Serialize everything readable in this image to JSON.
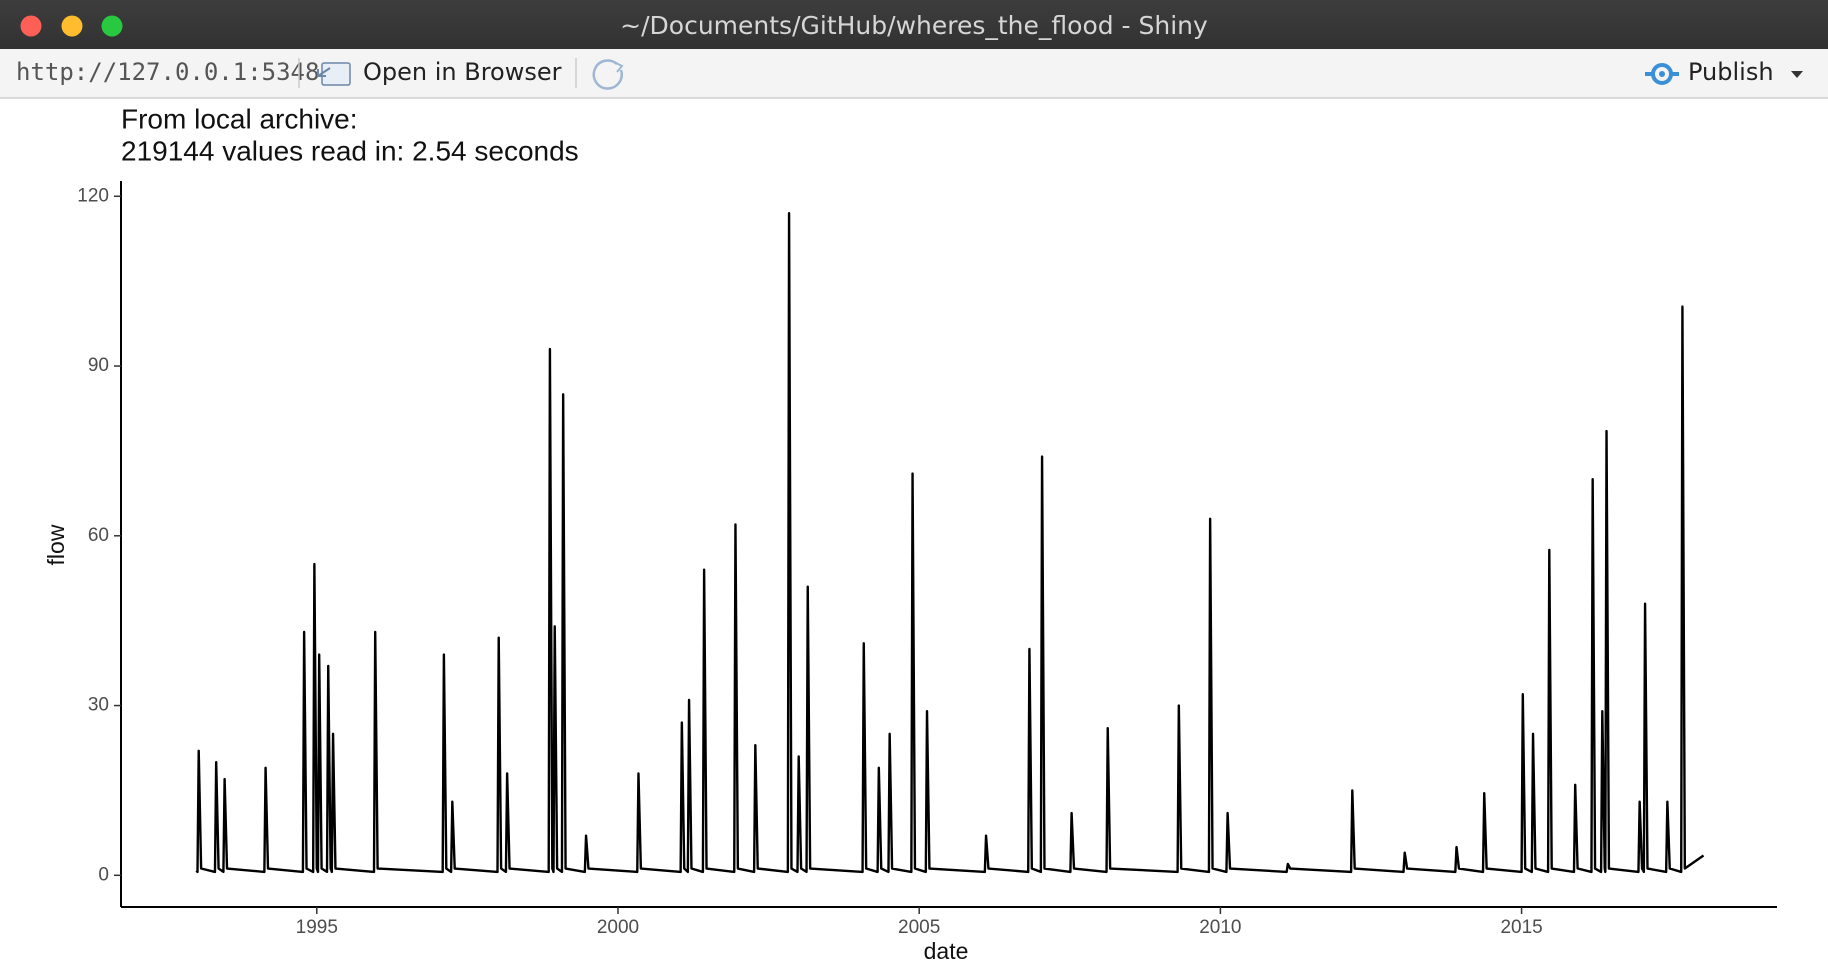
{
  "window": {
    "title": "~/Documents/GitHub/wheres_the_flood - Shiny"
  },
  "toolbar": {
    "url": "http://127.0.0.1:5348",
    "open_button": "Open in Browser",
    "publish_button": "Publish"
  },
  "chart_data": {
    "type": "line",
    "title": "From local archive:",
    "subtitle": "219144 values read in: 2.54 seconds",
    "x_label": "date",
    "y_label": "flow",
    "color": "#000000",
    "xlim": [
      1991.75,
      2019.24
    ],
    "xticks": [
      1995,
      2000,
      2005,
      2010,
      2015
    ],
    "ylim": [
      -5.6,
      122.7
    ],
    "yticks": [
      0,
      30,
      60,
      90,
      120
    ],
    "grid": false,
    "x": [
      1993.0,
      1993.02,
      1993.04,
      1993.08,
      1993.31,
      1993.33,
      1993.37,
      1993.45,
      1993.47,
      1993.51,
      1994.13,
      1994.15,
      1994.19,
      1994.77,
      1994.79,
      1994.83,
      1994.94,
      1994.96,
      1995.0,
      1995.02,
      1995.04,
      1995.08,
      1995.17,
      1995.19,
      1995.23,
      1995.25,
      1995.27,
      1995.31,
      1995.95,
      1995.97,
      1996.01,
      1997.09,
      1997.11,
      1997.15,
      1997.23,
      1997.25,
      1997.29,
      1998.0,
      1998.02,
      1998.06,
      1998.14,
      1998.16,
      1998.2,
      1998.85,
      1998.87,
      1998.91,
      1998.93,
      1998.95,
      1998.99,
      1999.07,
      1999.09,
      1999.13,
      1999.45,
      1999.47,
      1999.51,
      2000.32,
      2000.34,
      2000.38,
      2001.04,
      2001.06,
      2001.1,
      2001.16,
      2001.18,
      2001.22,
      2001.41,
      2001.43,
      2001.47,
      2001.93,
      2001.95,
      2001.99,
      2002.26,
      2002.28,
      2002.32,
      2002.82,
      2002.84,
      2002.88,
      2002.98,
      2003.0,
      2003.04,
      2003.13,
      2003.15,
      2003.19,
      2004.06,
      2004.08,
      2004.12,
      2004.31,
      2004.33,
      2004.37,
      2004.49,
      2004.51,
      2004.55,
      2004.87,
      2004.89,
      2004.93,
      2005.11,
      2005.13,
      2005.17,
      2006.09,
      2006.11,
      2006.15,
      2006.81,
      2006.83,
      2006.87,
      2007.02,
      2007.04,
      2007.08,
      2007.51,
      2007.53,
      2007.57,
      2008.11,
      2008.13,
      2008.17,
      2009.29,
      2009.31,
      2009.35,
      2009.81,
      2009.83,
      2009.87,
      2010.1,
      2010.12,
      2010.16,
      2011.1,
      2011.12,
      2011.16,
      2012.17,
      2012.19,
      2012.23,
      2013.04,
      2013.06,
      2013.1,
      2013.9,
      2013.92,
      2013.96,
      2014.36,
      2014.38,
      2014.42,
      2015.0,
      2015.02,
      2015.06,
      2015.17,
      2015.19,
      2015.23,
      2015.44,
      2015.46,
      2015.5,
      2015.87,
      2015.89,
      2015.93,
      2016.16,
      2016.18,
      2016.22,
      2016.32,
      2016.34,
      2016.38,
      2016.39,
      2016.41,
      2016.45,
      2016.94,
      2016.96,
      2017.0,
      2017.03,
      2017.05,
      2017.09,
      2017.4,
      2017.42,
      2017.46,
      2017.65,
      2017.67,
      2017.71,
      2018.02
    ],
    "values": [
      0.8,
      0.6,
      22,
      1.2,
      0.6,
      20,
      1.2,
      0.6,
      17,
      1.2,
      0.6,
      19,
      1.2,
      0.6,
      43,
      1.2,
      0.6,
      55,
      1.2,
      0.6,
      39,
      1.2,
      0.6,
      37,
      1.2,
      0.6,
      25,
      1.2,
      0.6,
      43,
      1.2,
      0.6,
      39,
      1.2,
      0.6,
      13,
      1.2,
      0.6,
      42,
      1.2,
      0.6,
      18,
      1.2,
      0.6,
      93,
      1.2,
      0.6,
      44,
      1.2,
      0.6,
      85,
      1.2,
      0.6,
      7,
      1.2,
      0.6,
      18,
      1.2,
      0.6,
      27,
      1.2,
      0.6,
      31,
      1.2,
      0.6,
      54,
      1.2,
      0.6,
      62,
      1.2,
      0.6,
      23,
      1.2,
      0.6,
      117,
      1.2,
      0.6,
      21,
      1.2,
      0.6,
      51,
      1.2,
      0.6,
      41,
      1.2,
      0.6,
      19,
      1.2,
      0.6,
      25,
      1.2,
      0.6,
      71,
      1.2,
      0.6,
      29,
      1.2,
      0.6,
      7,
      1.2,
      0.6,
      40,
      1.2,
      0.6,
      74,
      1.2,
      0.6,
      11,
      1.2,
      0.6,
      26,
      1.2,
      0.6,
      30,
      1.2,
      0.6,
      63,
      1.2,
      0.6,
      11,
      1.2,
      0.6,
      2,
      1.2,
      0.6,
      15,
      1.2,
      0.6,
      4,
      1.2,
      0.6,
      5,
      1.2,
      0.6,
      14.5,
      1.2,
      0.6,
      32,
      1.2,
      0.6,
      25,
      1.2,
      0.6,
      57.5,
      1.2,
      0.6,
      16,
      1.2,
      0.6,
      70,
      1.2,
      0.6,
      29,
      1.2,
      0.6,
      78.5,
      1.2,
      0.6,
      13,
      1.2,
      0.6,
      48,
      1.2,
      0.6,
      13,
      1.2,
      0.6,
      100.5,
      1.2,
      3.5
    ]
  }
}
